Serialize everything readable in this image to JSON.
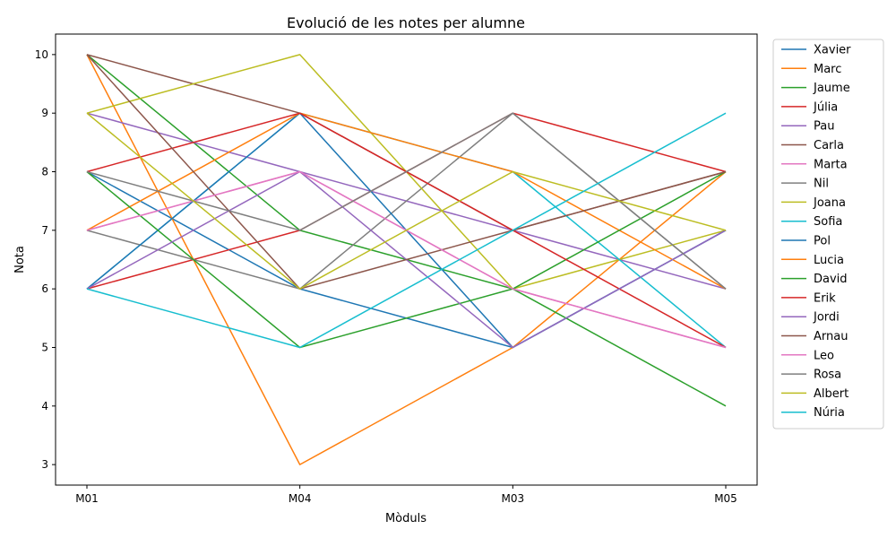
{
  "chart_data": {
    "type": "line",
    "title": "Evolució de les notes per alumne",
    "xlabel": "Mòduls",
    "ylabel": "Nota",
    "categories": [
      "M01",
      "M04",
      "M03",
      "M05"
    ],
    "ylim": [
      2.65,
      10.35
    ],
    "yticks": [
      3,
      4,
      5,
      6,
      7,
      8,
      9,
      10
    ],
    "grid": false,
    "legend_position": "outside-right",
    "series": [
      {
        "name": "Xavier",
        "color": "#1f77b4",
        "values": [
          8,
          6,
          5,
          7
        ]
      },
      {
        "name": "Marc",
        "color": "#ff7f0e",
        "values": [
          10,
          3,
          5,
          8
        ]
      },
      {
        "name": "Jaume",
        "color": "#2ca02c",
        "values": [
          10,
          7,
          6,
          4
        ]
      },
      {
        "name": "Júlia",
        "color": "#d62728",
        "values": [
          6,
          7,
          9,
          8
        ]
      },
      {
        "name": "Pau",
        "color": "#9467bd",
        "values": [
          9,
          8,
          7,
          6
        ]
      },
      {
        "name": "Carla",
        "color": "#8c564b",
        "values": [
          10,
          9,
          7,
          8
        ]
      },
      {
        "name": "Marta",
        "color": "#e377c2",
        "values": [
          7,
          8,
          6,
          5
        ]
      },
      {
        "name": "Nil",
        "color": "#7f7f7f",
        "values": [
          7,
          6,
          9,
          6
        ]
      },
      {
        "name": "Joana",
        "color": "#bcbd22",
        "values": [
          9,
          10,
          6,
          7
        ]
      },
      {
        "name": "Sofia",
        "color": "#17becf",
        "values": [
          6,
          9,
          8,
          5
        ]
      },
      {
        "name": "Pol",
        "color": "#1f77b4",
        "values": [
          6,
          9,
          5,
          7
        ]
      },
      {
        "name": "Lucia",
        "color": "#ff7f0e",
        "values": [
          7,
          9,
          8,
          6
        ]
      },
      {
        "name": "David",
        "color": "#2ca02c",
        "values": [
          8,
          5,
          6,
          8
        ]
      },
      {
        "name": "Erik",
        "color": "#d62728",
        "values": [
          8,
          9,
          7,
          5
        ]
      },
      {
        "name": "Jordi",
        "color": "#9467bd",
        "values": [
          6,
          8,
          5,
          7
        ]
      },
      {
        "name": "Arnau",
        "color": "#8c564b",
        "values": [
          10,
          6,
          7,
          8
        ]
      },
      {
        "name": "Leo",
        "color": "#e377c2",
        "values": [
          7,
          8,
          6,
          5
        ]
      },
      {
        "name": "Rosa",
        "color": "#7f7f7f",
        "values": [
          8,
          7,
          9,
          6
        ]
      },
      {
        "name": "Albert",
        "color": "#bcbd22",
        "values": [
          9,
          6,
          8,
          7
        ]
      },
      {
        "name": "Núria",
        "color": "#17becf",
        "values": [
          6,
          5,
          7,
          9
        ]
      }
    ]
  }
}
